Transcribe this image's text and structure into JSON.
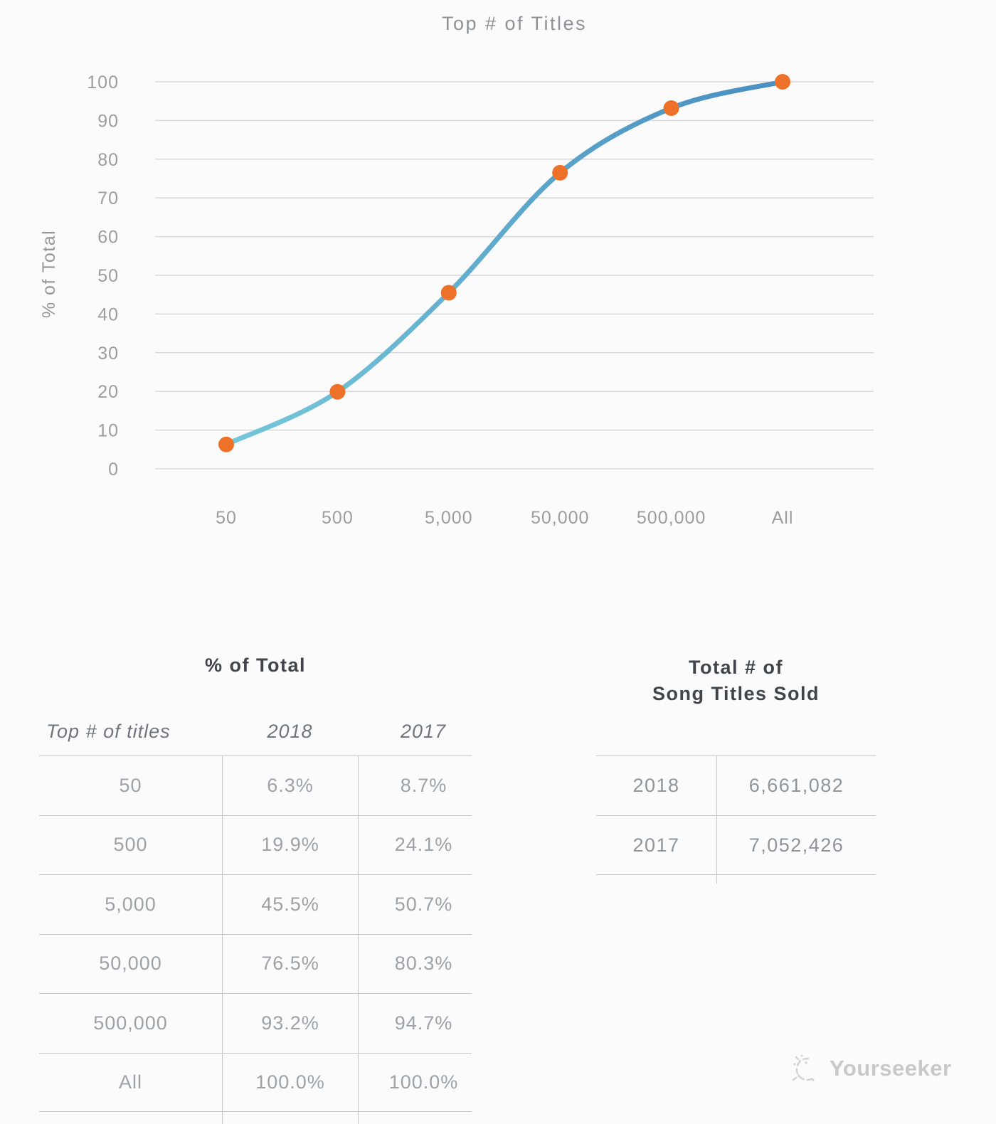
{
  "chart": {
    "title": "Top # of Titles"
  },
  "chart_data": {
    "type": "line",
    "title": "Top # of Titles",
    "categories": [
      "50",
      "500",
      "5,000",
      "50,000",
      "500,000",
      "All"
    ],
    "series": [
      {
        "name": "2018 % of Total",
        "values": [
          6.3,
          19.9,
          45.5,
          76.5,
          93.2,
          100.0
        ]
      }
    ],
    "xlabel": "Top # of Titles",
    "ylabel": "% of Total",
    "ylim": [
      0,
      100
    ],
    "ytick_step": 10,
    "grid": "horizontal",
    "legend": "none",
    "line_color_start": "#76C7DA",
    "line_color_end": "#4A8FC0",
    "point_color": "#ED7128",
    "gridline_color": "#D8D8D8",
    "tick_label_color": "#9B9DA0",
    "axis_title_color": "#95979A"
  },
  "tables": {
    "pct": {
      "title": "% of Total",
      "columns": [
        "Top # of titles",
        "2018",
        "2017"
      ],
      "rows": [
        {
          "label": "50",
          "y2018": "6.3%",
          "y2017": "8.7%"
        },
        {
          "label": "500",
          "y2018": "19.9%",
          "y2017": "24.1%"
        },
        {
          "label": "5,000",
          "y2018": "45.5%",
          "y2017": "50.7%"
        },
        {
          "label": "50,000",
          "y2018": "76.5%",
          "y2017": "80.3%"
        },
        {
          "label": "500,000",
          "y2018": "93.2%",
          "y2017": "94.7%"
        },
        {
          "label": "All",
          "y2018": "100.0%",
          "y2017": "100.0%"
        }
      ]
    },
    "totals": {
      "title_line1": "Total # of",
      "title_line2": "Song Titles Sold",
      "rows": [
        {
          "year": "2018",
          "value": "6,661,082"
        },
        {
          "year": "2017",
          "value": "7,052,426"
        }
      ]
    }
  },
  "watermark": {
    "text": "Yourseeker"
  },
  "colors": {
    "background": "#FBFBFB",
    "rule": "#C4C7CA",
    "table_title": "#40454B",
    "table_header": "#6F767D",
    "table_cell": "#9DA2A7",
    "totals_cell": "#8E959B",
    "watermark": "#C9C9C9"
  }
}
